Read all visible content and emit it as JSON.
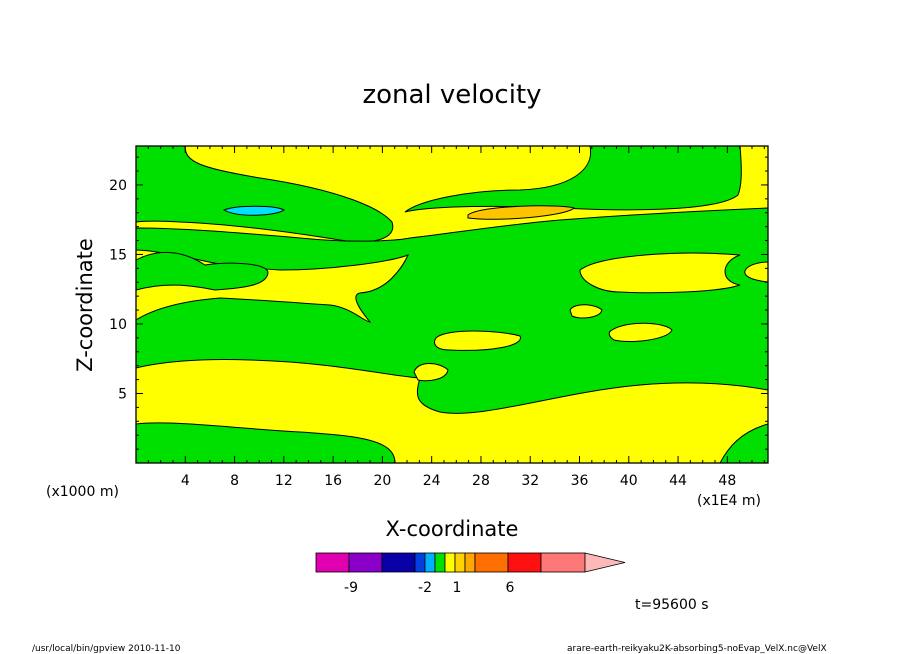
{
  "chart_data": {
    "type": "contour",
    "title": "zonal velocity",
    "xlabel": "X-coordinate",
    "ylabel": "Z-coordinate",
    "x_unit_left": "(x1000 m)",
    "x_unit_right": "(x1E4 m)",
    "x_ticks": [
      "4",
      "8",
      "12",
      "16",
      "20",
      "24",
      "28",
      "32",
      "36",
      "40",
      "44",
      "48"
    ],
    "y_ticks": [
      "5",
      "10",
      "15",
      "20"
    ],
    "xlim": [
      0,
      51.3
    ],
    "ylim": [
      0,
      22.8
    ],
    "time_label": "t=95600 s",
    "footer_left": "/usr/local/bin/gpview  2010-11-10",
    "footer_right": "arare-earth-reikyaku2K-absorbing5-noEvap_VelX.nc@VelX",
    "colorbar": {
      "colors": [
        "#e000b0",
        "#8a00c8",
        "#0a00a8",
        "#0040e0",
        "#00b0ff",
        "#00e000",
        "#ffff00",
        "#ffd200",
        "#ffa800",
        "#ff6e00",
        "#ff1010",
        "#ff7878",
        "#ffb8b8"
      ],
      "labels": [
        "-9",
        "-2",
        "1",
        "6"
      ]
    },
    "field_levels": {
      "green": "#00e000",
      "yellow": "#ffff00",
      "orange": "#ffc400",
      "cyan": "#00e0ff"
    }
  }
}
